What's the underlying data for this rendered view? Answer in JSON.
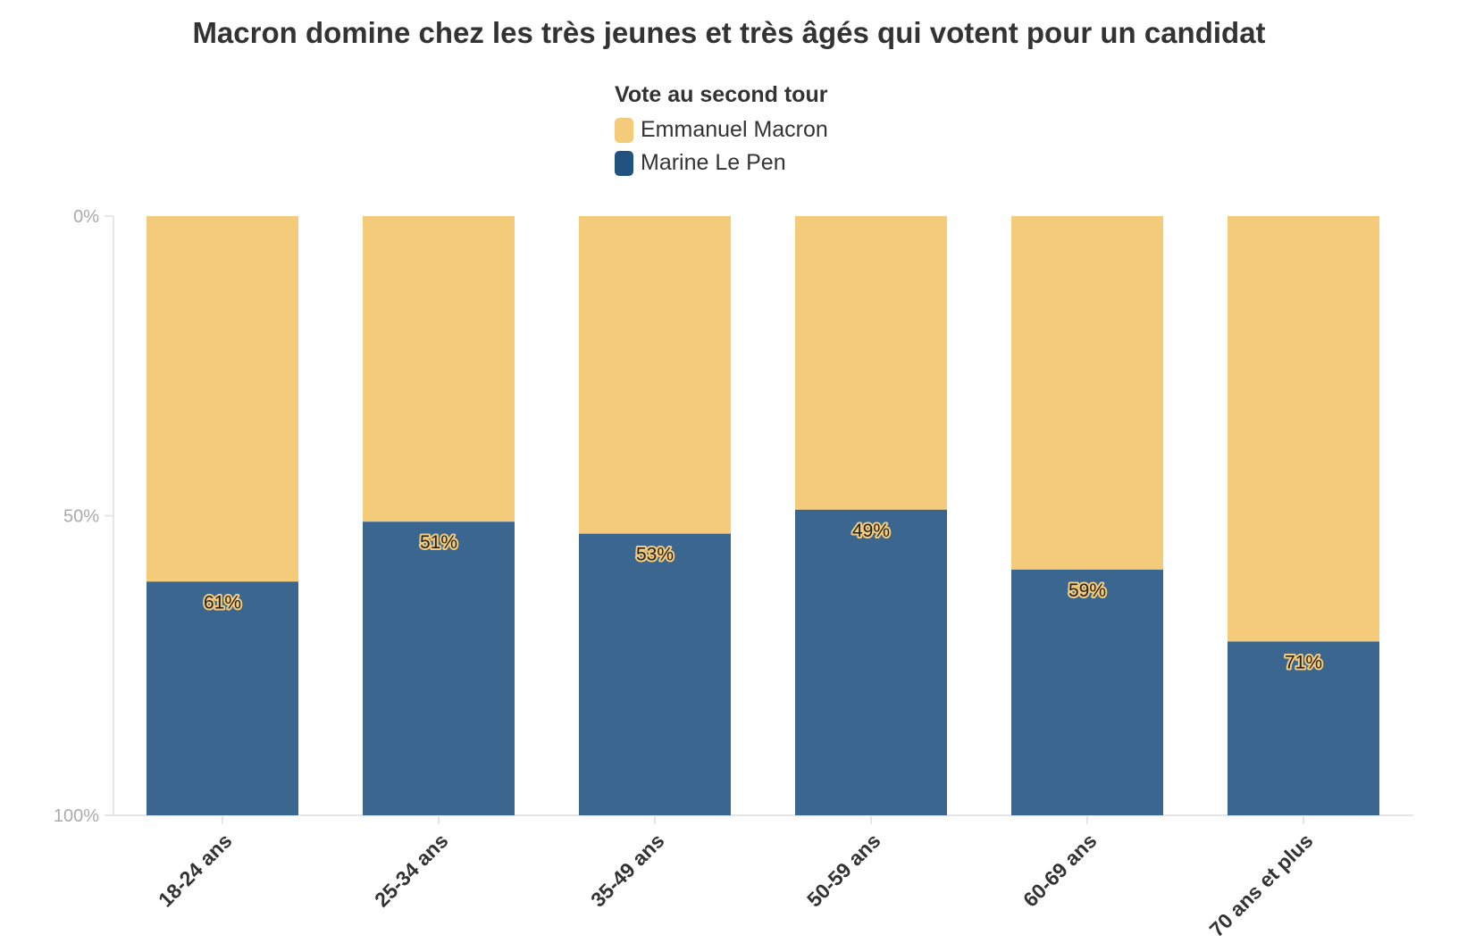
{
  "chart_data": {
    "type": "bar",
    "stacked": true,
    "title": "Macron domine chez les très jeunes et très âgés qui votent pour un candidat",
    "legend": {
      "title": "Vote au second tour",
      "placement": "top-center"
    },
    "categories": [
      "18-24 ans",
      "25-34 ans",
      "35-49 ans",
      "50-59 ans",
      "60-69 ans",
      "70 ans et plus"
    ],
    "series": [
      {
        "name": "Emmanuel Macron",
        "color": "#f3cb7a",
        "values": [
          61,
          51,
          53,
          49,
          59,
          71
        ]
      },
      {
        "name": "Marine Le Pen",
        "color": "#3b668f",
        "values": [
          39,
          49,
          47,
          51,
          41,
          29
        ]
      }
    ],
    "data_labels": [
      "61%",
      "51%",
      "53%",
      "49%",
      "59%",
      "71%"
    ],
    "y_ticks": [
      "0%",
      "50%",
      "100%"
    ],
    "ylim": [
      0,
      100
    ],
    "y_reversed": true,
    "xlabel": "",
    "ylabel": "",
    "grid": false
  }
}
